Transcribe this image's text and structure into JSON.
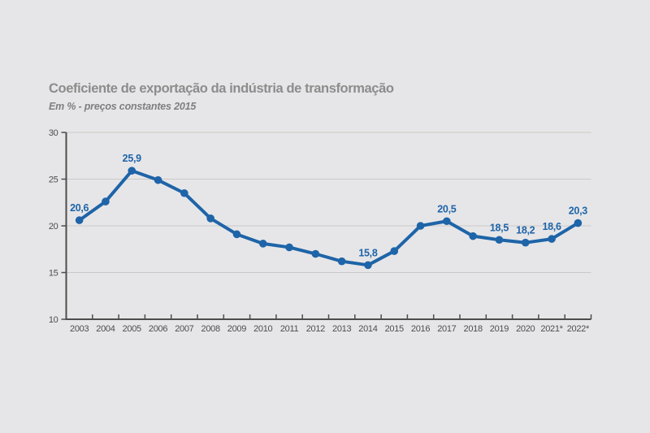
{
  "page": {
    "background": "#e6e6e8"
  },
  "header": {
    "title": "Coeficiente de exportação da indústria de transformação",
    "subtitle": "Em % - preços constantes 2015"
  },
  "chart_data": {
    "type": "line",
    "title": "Coeficiente de exportação da indústria de transformação",
    "subtitle": "Em % - preços constantes 2015",
    "categories": [
      "2003",
      "2004",
      "2005",
      "2006",
      "2007",
      "2008",
      "2009",
      "2010",
      "2011",
      "2012",
      "2013",
      "2014",
      "2015",
      "2016",
      "2017",
      "2018",
      "2019",
      "2020",
      "2021*",
      "2022*"
    ],
    "values": [
      20.6,
      22.6,
      25.9,
      24.9,
      23.5,
      20.8,
      19.1,
      18.1,
      17.7,
      17.0,
      16.2,
      15.8,
      17.3,
      20.0,
      20.5,
      18.9,
      18.5,
      18.2,
      18.6,
      20.3
    ],
    "point_labels": [
      "20,6",
      null,
      "25,9",
      null,
      null,
      null,
      null,
      null,
      null,
      null,
      null,
      "15,8",
      null,
      null,
      "20,5",
      null,
      "18,5",
      "18,2",
      "18,6",
      "20,3"
    ],
    "xlabel": "",
    "ylabel": "",
    "ylim": [
      10,
      30
    ],
    "yticks": [
      10,
      15,
      20,
      25,
      30
    ],
    "grid": "horizontal",
    "legend": "none",
    "colors": {
      "line": "#1e64a8",
      "point": "#1e64a8",
      "point_label": "#1e64a8",
      "axis": "#4d4d4d",
      "tick_text": "#4d4d4d",
      "grid": "#c9c9c9"
    }
  }
}
